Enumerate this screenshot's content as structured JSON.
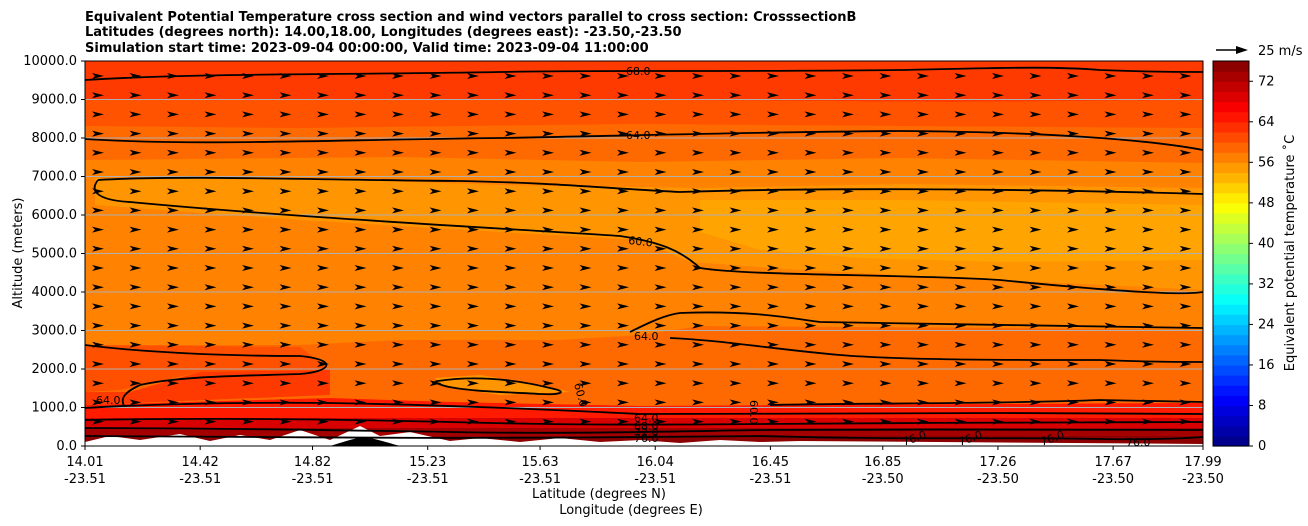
{
  "chart_data": {
    "type": "heatmap",
    "title": [
      "Equivalent Potential Temperature cross section and wind vectors parallel to cross section: CrosssectionB",
      "Latitudes (degrees north): 14.00,18.00, Longitudes (degrees east): -23.50,-23.50",
      "Simulation start time: 2023-09-04 00:00:00, Valid time: 2023-09-04 11:00:00"
    ],
    "xlabel": [
      "Latitude (degrees N)",
      "Longitude (degrees E)"
    ],
    "ylabel": "Altitude (meters)",
    "colorbar_label": "Equivalent potential temperature ˚C",
    "ylim": [
      0,
      10000
    ],
    "yticks": [
      "0.0",
      "1000.0",
      "2000.0",
      "3000.0",
      "4000.0",
      "5000.0",
      "6000.0",
      "7000.0",
      "8000.0",
      "9000.0",
      "10000.0"
    ],
    "xticks": [
      {
        "lat": "14.01",
        "lon": "-23.51"
      },
      {
        "lat": "14.42",
        "lon": "-23.51"
      },
      {
        "lat": "14.82",
        "lon": "-23.51"
      },
      {
        "lat": "15.23",
        "lon": "-23.51"
      },
      {
        "lat": "15.63",
        "lon": "-23.51"
      },
      {
        "lat": "16.04",
        "lon": "-23.51"
      },
      {
        "lat": "16.45",
        "lon": "-23.51"
      },
      {
        "lat": "16.85",
        "lon": "-23.50"
      },
      {
        "lat": "17.26",
        "lon": "-23.50"
      },
      {
        "lat": "17.67",
        "lon": "-23.50"
      },
      {
        "lat": "17.99",
        "lon": "-23.50"
      }
    ],
    "colorbar": {
      "min": 0,
      "max": 76,
      "step": 2,
      "ticks": [
        "0",
        "8",
        "16",
        "24",
        "32",
        "40",
        "48",
        "56",
        "64",
        "72"
      ]
    },
    "quiver_key": "25 m/s",
    "grid": "horizontal",
    "contour_labels": [
      "68.0",
      "64.0",
      "60.0",
      "64.0",
      "60.0",
      "60.0",
      "64.0",
      "64.0",
      "68.0",
      "72.0",
      "76.0",
      "76.0",
      "76.0",
      "76.0",
      "76.0"
    ]
  }
}
